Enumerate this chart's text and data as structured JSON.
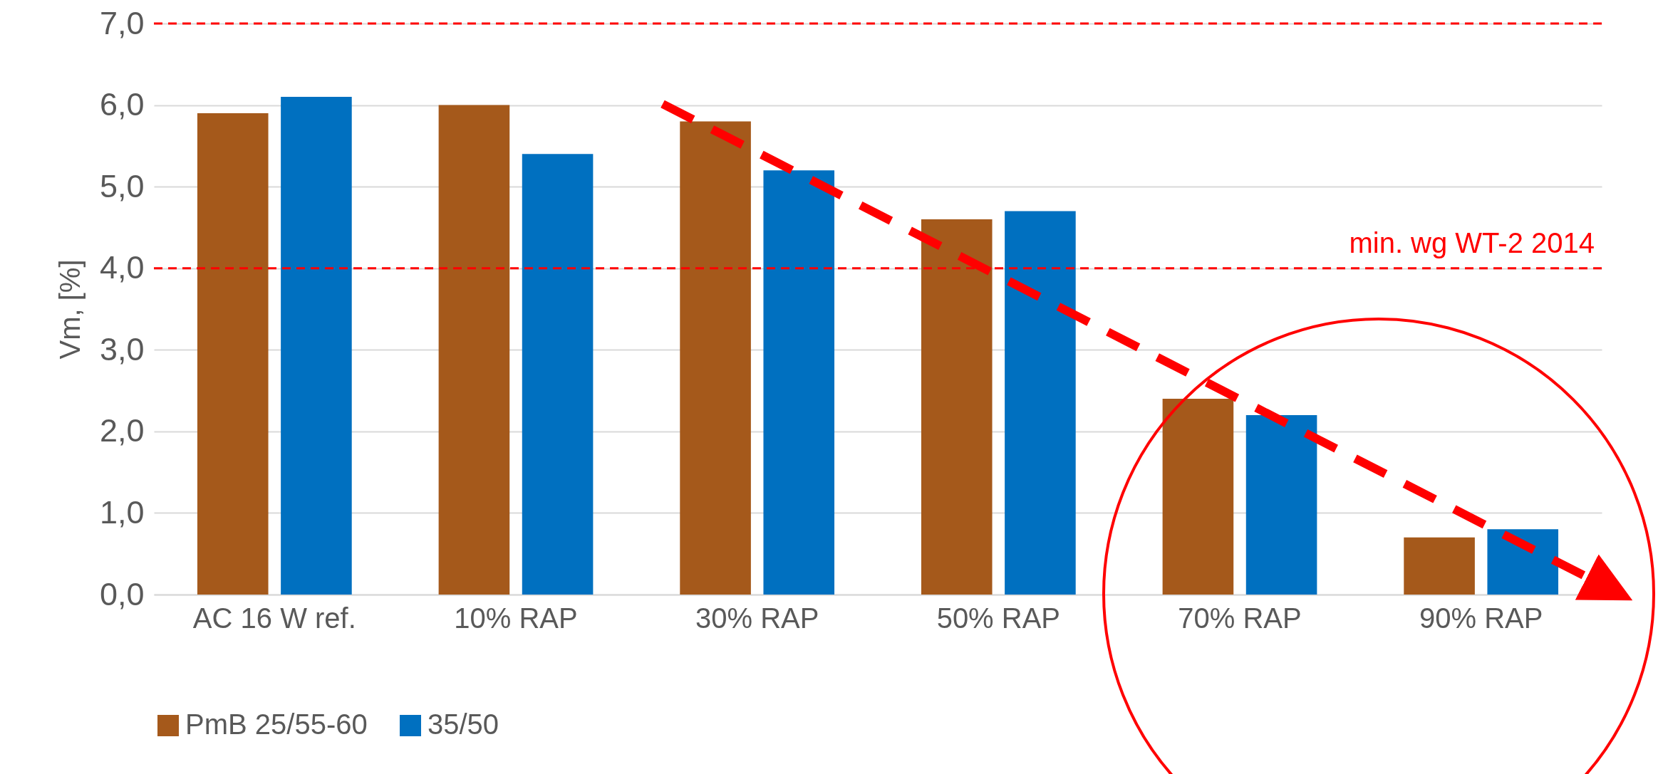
{
  "chart_data": {
    "type": "bar",
    "ylabel": "Vm, [%]",
    "categories": [
      "AC 16 W ref.",
      "10% RAP",
      "30% RAP",
      "50% RAP",
      "70% RAP",
      "90% RAP"
    ],
    "series": [
      {
        "name": "PmB 25/55-60",
        "color": "#a5591b",
        "values": [
          5.9,
          6.0,
          5.8,
          4.6,
          2.4,
          0.7
        ]
      },
      {
        "name": "35/50",
        "color": "#0070c0",
        "values": [
          6.1,
          5.4,
          5.2,
          4.7,
          2.2,
          0.8
        ]
      }
    ],
    "ylim": [
      0,
      7
    ],
    "yticks": [
      {
        "value": 0,
        "label": "0,0"
      },
      {
        "value": 1,
        "label": "1,0"
      },
      {
        "value": 2,
        "label": "2,0"
      },
      {
        "value": 3,
        "label": "3,0"
      },
      {
        "value": 4,
        "label": "4,0"
      },
      {
        "value": 5,
        "label": "5,0"
      },
      {
        "value": 6,
        "label": "6,0"
      },
      {
        "value": 7,
        "label": "7,0"
      }
    ],
    "ref_lines": [
      {
        "axis": "y",
        "value": 7,
        "label": null,
        "color": "#ff0000",
        "line_style": "dashed"
      },
      {
        "axis": "y",
        "value": 4,
        "label": "min. wg WT-2 2014",
        "color": "#ff0000",
        "line_style": "dashed"
      }
    ],
    "grid": "y",
    "legend": "bottom"
  }
}
